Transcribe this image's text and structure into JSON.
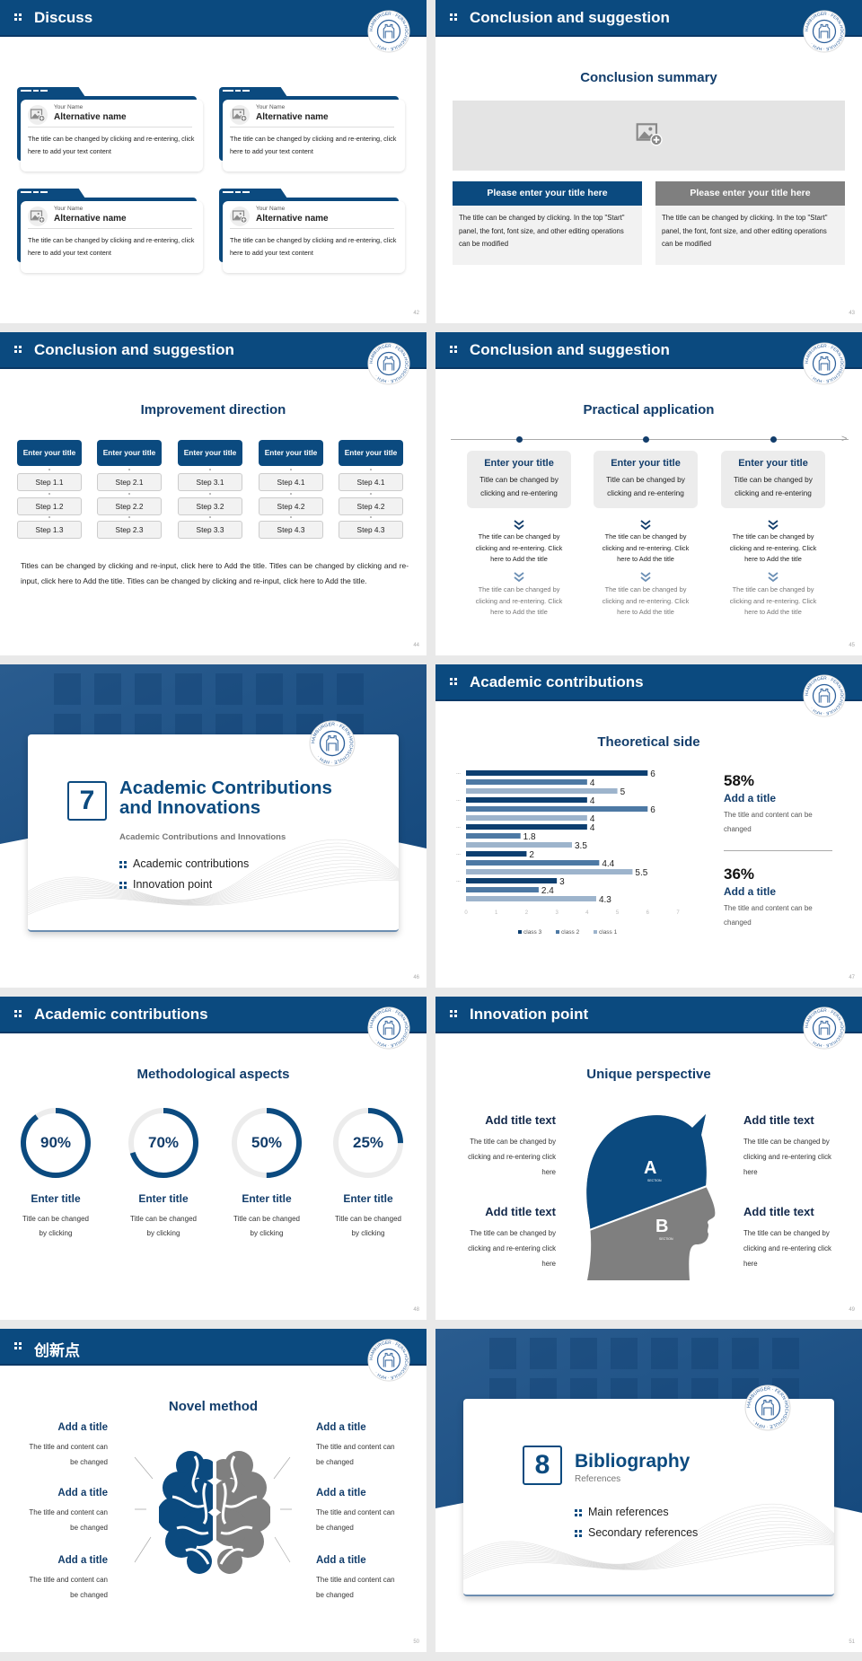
{
  "colors": {
    "primary": "#0b4a7f",
    "title": "#123d6b",
    "gray": "#7f7f7f",
    "light_panel": "#f2f2f2"
  },
  "logo_text": "HAMBURGER · FERN-HOCHSCHULE · HFH ·",
  "s42": {
    "header": "Discuss",
    "page": "42",
    "cards": [
      {
        "small": "Your Name",
        "name": "Alternative name",
        "text": "The title can be changed by clicking and re-entering, click here to add your text content"
      },
      {
        "small": "Your Name",
        "name": "Alternative name",
        "text": "The title can be changed by clicking and re-entering, click here to add your text content"
      },
      {
        "small": "Your Name",
        "name": "Alternative name",
        "text": "The title can be changed by clicking and re-entering, click here to add your text content"
      },
      {
        "small": "Your Name",
        "name": "Alternative name",
        "text": "The title can be changed by clicking and re-entering, click here to add your text content"
      }
    ]
  },
  "s43": {
    "header": "Conclusion and suggestion",
    "page": "43",
    "title": "Conclusion summary",
    "image_icon": "image-add-icon",
    "panels": [
      {
        "title": "Please enter your title here",
        "text": "The title can be changed by clicking. In the top \"Start\" panel, the font, font size, and other editing operations can be modified"
      },
      {
        "title": "Please enter your title here",
        "text": "The title can be changed by clicking. In the top \"Start\" panel, the font, font size, and other editing operations can be modified"
      }
    ]
  },
  "s44": {
    "header": "Conclusion and suggestion",
    "page": "44",
    "title": "Improvement direction",
    "columns": [
      {
        "title": "Enter your title",
        "steps": [
          "Step 1.1",
          "Step 1.2",
          "Step 1.3"
        ]
      },
      {
        "title": "Enter your title",
        "steps": [
          "Step 2.1",
          "Step 2.2",
          "Step 2.3"
        ]
      },
      {
        "title": "Enter your title",
        "steps": [
          "Step 3.1",
          "Step 3.2",
          "Step 3.3"
        ]
      },
      {
        "title": "Enter your title",
        "steps": [
          "Step 4.1",
          "Step 4.2",
          "Step 4.3"
        ]
      },
      {
        "title": "Enter your title",
        "steps": [
          "Step 4.1",
          "Step 4.2",
          "Step 4.3"
        ]
      }
    ],
    "paragraph": "Titles can be changed by clicking and re-input, click here to Add the title. Titles can be changed by clicking and re-input, click here to Add the title. Titles can be changed by clicking and re-input, click here to Add the title."
  },
  "s45": {
    "header": "Conclusion and suggestion",
    "page": "45",
    "title": "Practical application",
    "items": [
      {
        "title": "Enter your title",
        "text": "Title can be changed by clicking and re-entering",
        "step1": "The title can be changed by clicking and re-entering. Click here to Add the title",
        "step2": "The title can be changed by clicking and re-entering. Click here to Add the title"
      },
      {
        "title": "Enter your title",
        "text": "Title can be changed by clicking and re-entering",
        "step1": "The title can be changed by clicking and re-entering. Click here to Add the title",
        "step2": "The title can be changed by clicking and re-entering. Click here to Add the title"
      },
      {
        "title": "Enter your title",
        "text": "Title can be changed by clicking and re-entering",
        "step1": "The title can be changed by clicking and re-entering. Click here to Add the title",
        "step2": "The title can be changed by clicking and re-entering. Click here to Add the title"
      }
    ]
  },
  "s46": {
    "page": "46",
    "number": "7",
    "title": "Academic Contributions and Innovations",
    "subtitle": "Academic Contributions and Innovations",
    "bullets": [
      "Academic contributions",
      "Innovation point"
    ]
  },
  "s47": {
    "header": "Academic contributions",
    "page": "47",
    "title": "Theoretical side",
    "stats": [
      {
        "value": "58%",
        "title": "Add a title",
        "text": "The title and content can be changed"
      },
      {
        "value": "36%",
        "title": "Add a title",
        "text": "The title and content can be changed"
      }
    ]
  },
  "s48": {
    "header": "Academic contributions",
    "page": "48",
    "title": "Methodological aspects",
    "items": [
      {
        "percent": 90,
        "label": "90%",
        "title": "Enter title",
        "text": "Title can be changed by clicking"
      },
      {
        "percent": 70,
        "label": "70%",
        "title": "Enter title",
        "text": "Title can be changed by clicking"
      },
      {
        "percent": 50,
        "label": "50%",
        "title": "Enter title",
        "text": "Title can be changed by clicking"
      },
      {
        "percent": 25,
        "label": "25%",
        "title": "Enter title",
        "text": "Title can be changed by clicking"
      }
    ]
  },
  "s49": {
    "header": "Innovation point",
    "page": "49",
    "title": "Unique perspective",
    "section_a": "A",
    "section_b": "B",
    "section_label": "SECTION",
    "items": [
      {
        "title": "Add title text",
        "text": "The title can be changed by clicking and re-entering click here"
      },
      {
        "title": "Add title text",
        "text": "The title can be changed by clicking and re-entering click here"
      },
      {
        "title": "Add title text",
        "text": "The title can be changed by clicking and re-entering click here"
      },
      {
        "title": "Add title text",
        "text": "The title can be changed by clicking and re-entering click here"
      }
    ]
  },
  "s50": {
    "header": "创新点",
    "page": "50",
    "title": "Novel method",
    "items": [
      {
        "title": "Add a title",
        "text": "The title and content can be changed"
      },
      {
        "title": "Add a title",
        "text": "The title and content can be changed"
      },
      {
        "title": "Add a title",
        "text": "The title and content can be changed"
      },
      {
        "title": "Add a title",
        "text": "The title and content can be changed"
      },
      {
        "title": "Add a title",
        "text": "The title and content can be changed"
      },
      {
        "title": "Add a title",
        "text": "The title and content can be changed"
      }
    ]
  },
  "s51": {
    "page": "51",
    "number": "8",
    "title": "Bibliography",
    "subtitle": "References",
    "bullets": [
      "Main references",
      "Secondary references"
    ]
  },
  "chart_data": {
    "type": "bar",
    "orientation": "horizontal",
    "title": "Theoretical side",
    "xlim": [
      0,
      7
    ],
    "xticks": [
      "0",
      "1",
      "2",
      "3",
      "4",
      "5",
      "6",
      "7"
    ],
    "grid": false,
    "legend": "bottom",
    "series": [
      {
        "name": "class 3",
        "color": "#0d3f70",
        "values": [
          6,
          4,
          4,
          2,
          3
        ]
      },
      {
        "name": "class 2",
        "color": "#4d79a4",
        "values": [
          4,
          6,
          1.8,
          4.4,
          2.4
        ]
      },
      {
        "name": "class 1",
        "color": "#9db4cc",
        "values": [
          5,
          4,
          3.5,
          5.5,
          4.3
        ]
      }
    ]
  }
}
